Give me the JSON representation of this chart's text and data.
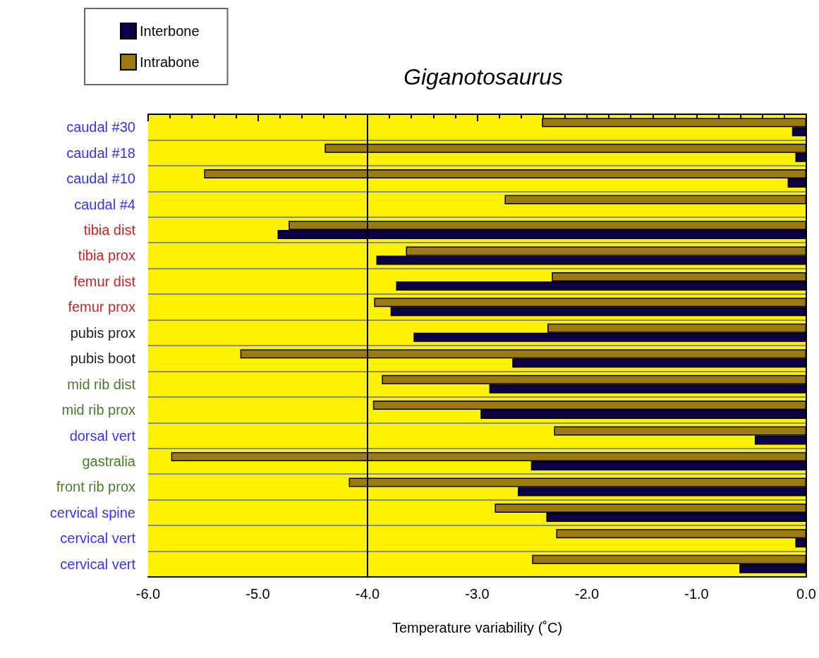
{
  "chart_data": {
    "type": "bar",
    "orientation": "horizontal",
    "title": "Giganotosaurus",
    "xlabel": "Temperature variability (˚C)",
    "categories": [
      "caudal #30",
      "caudal #18",
      "caudal #10",
      "caudal #4",
      "tibia dist",
      "tibia prox",
      "femur dist",
      "femur prox",
      "pubis prox",
      "pubis boot",
      "mid rib dist",
      "mid rib prox",
      "dorsal vert",
      "gastralia",
      "front rib prox",
      "cervical spine",
      "cervical vert",
      "cervical vert"
    ],
    "series": [
      {
        "name": "Interbone",
        "color": "#0c0047",
        "values": [
          -0.13,
          -0.1,
          -0.17,
          null,
          -4.82,
          -3.92,
          -3.74,
          -3.79,
          -3.58,
          -2.68,
          -2.89,
          -2.97,
          -0.47,
          -2.51,
          -2.63,
          -2.37,
          -0.1,
          -0.61
        ]
      },
      {
        "name": "Intrabone",
        "color": "#9c7a12",
        "values": [
          -2.41,
          -4.39,
          -5.49,
          -2.75,
          -4.72,
          -3.65,
          -2.32,
          -3.94,
          -2.36,
          -5.16,
          -3.87,
          -3.95,
          -2.3,
          -5.79,
          -4.17,
          -2.84,
          -2.28,
          -2.5
        ]
      }
    ],
    "xlim": [
      -6,
      0
    ],
    "xticks": [
      {
        "value": -6,
        "label": "-6.0"
      },
      {
        "value": -5,
        "label": "-5.0"
      },
      {
        "value": -4,
        "label": "-4.0"
      },
      {
        "value": -3,
        "label": "-3.0"
      },
      {
        "value": -2,
        "label": "-2.0"
      },
      {
        "value": -1,
        "label": "-1.0"
      },
      {
        "value": 0,
        "label": "0.0"
      }
    ],
    "ref_lines": [
      {
        "axis": "x",
        "value": -4,
        "color": "#000000"
      }
    ],
    "grid": "y",
    "legend": "top left"
  }
}
